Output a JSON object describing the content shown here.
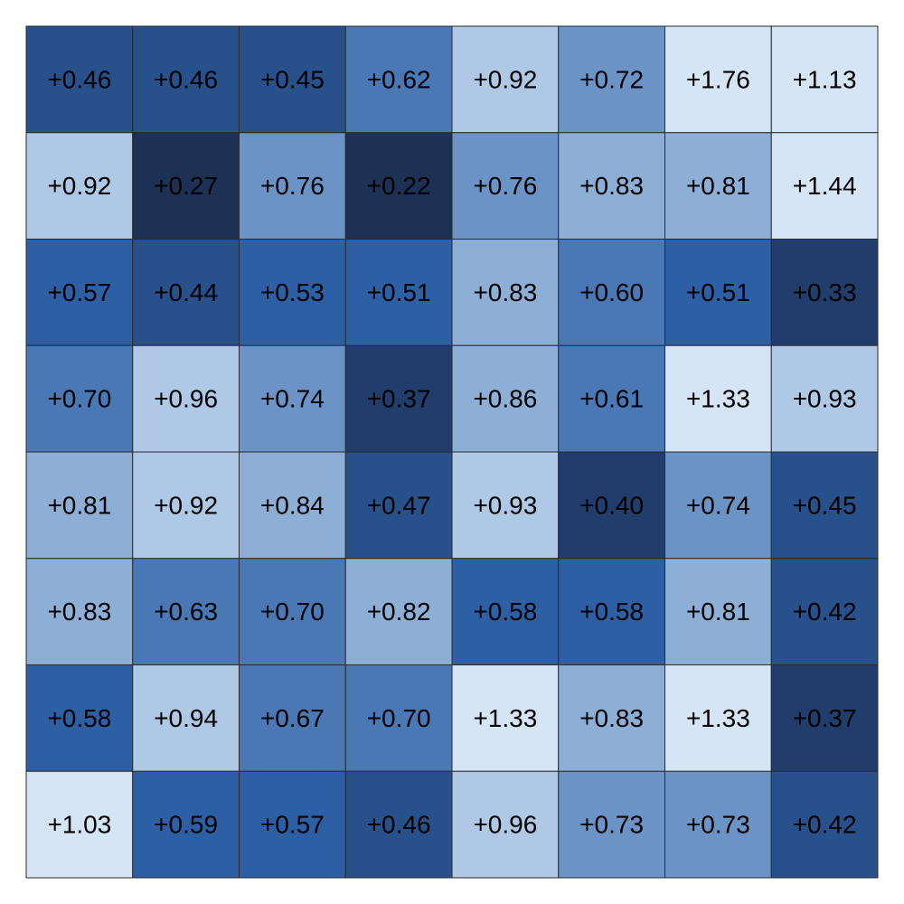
{
  "chart_data": {
    "type": "heatmap",
    "values": [
      [
        0.46,
        0.46,
        0.45,
        0.62,
        0.92,
        0.72,
        1.76,
        1.13
      ],
      [
        0.92,
        0.27,
        0.76,
        0.22,
        0.76,
        0.83,
        0.81,
        1.44
      ],
      [
        0.57,
        0.44,
        0.53,
        0.51,
        0.83,
        0.6,
        0.51,
        0.33
      ],
      [
        0.7,
        0.96,
        0.74,
        0.37,
        0.86,
        0.61,
        1.33,
        0.93
      ],
      [
        0.81,
        0.92,
        0.84,
        0.47,
        0.93,
        0.4,
        0.74,
        0.45
      ],
      [
        0.83,
        0.63,
        0.7,
        0.82,
        0.58,
        0.58,
        0.81,
        0.42
      ],
      [
        0.58,
        0.94,
        0.67,
        0.7,
        1.33,
        0.83,
        1.33,
        0.37
      ],
      [
        1.03,
        0.59,
        0.57,
        0.46,
        0.96,
        0.73,
        0.73,
        0.42
      ]
    ],
    "value_labels": [
      [
        "+0.46",
        "+0.46",
        "+0.45",
        "+0.62",
        "+0.92",
        "+0.72",
        "+1.76",
        "+1.13"
      ],
      [
        "+0.92",
        "+0.27",
        "+0.76",
        "+0.22",
        "+0.76",
        "+0.83",
        "+0.81",
        "+1.44"
      ],
      [
        "+0.57",
        "+0.44",
        "+0.53",
        "+0.51",
        "+0.83",
        "+0.60",
        "+0.51",
        "+0.33"
      ],
      [
        "+0.70",
        "+0.96",
        "+0.74",
        "+0.37",
        "+0.86",
        "+0.61",
        "+1.33",
        "+0.93"
      ],
      [
        "+0.81",
        "+0.92",
        "+0.84",
        "+0.47",
        "+0.93",
        "+0.40",
        "+0.74",
        "+0.45"
      ],
      [
        "+0.83",
        "+0.63",
        "+0.70",
        "+0.82",
        "+0.58",
        "+0.58",
        "+0.81",
        "+0.42"
      ],
      [
        "+0.58",
        "+0.94",
        "+0.67",
        "+0.70",
        "+1.33",
        "+0.83",
        "+1.33",
        "+0.37"
      ],
      [
        "+1.03",
        "+0.59",
        "+0.57",
        "+0.46",
        "+0.96",
        "+0.73",
        "+0.73",
        "+0.42"
      ]
    ],
    "colors": [
      [
        "#28508a",
        "#28508a",
        "#28508a",
        "#4a78b5",
        "#aec8e5",
        "#6b93c6",
        "#d6e5f6",
        "#d6e5f6"
      ],
      [
        "#aec8e5",
        "#1c3153",
        "#6b93c6",
        "#1c3153",
        "#6b93c6",
        "#8dafd6",
        "#8dafd6",
        "#d6e5f6"
      ],
      [
        "#2d5fa5",
        "#28508a",
        "#2d5fa5",
        "#2d5fa5",
        "#8dafd6",
        "#4a78b5",
        "#2d5fa5",
        "#213d6b"
      ],
      [
        "#4a78b5",
        "#aec8e5",
        "#6b93c6",
        "#213d6b",
        "#8dafd6",
        "#4a78b5",
        "#d6e5f6",
        "#aec8e5"
      ],
      [
        "#8dafd6",
        "#aec8e5",
        "#8dafd6",
        "#28508a",
        "#aec8e5",
        "#213d6b",
        "#6b93c6",
        "#28508a"
      ],
      [
        "#8dafd6",
        "#4a78b5",
        "#4a78b5",
        "#8dafd6",
        "#2d5fa5",
        "#2d5fa5",
        "#8dafd6",
        "#28508a"
      ],
      [
        "#2d5fa5",
        "#aec8e5",
        "#4a78b5",
        "#4a78b5",
        "#d6e5f6",
        "#8dafd6",
        "#d6e5f6",
        "#213d6b"
      ],
      [
        "#d6e5f6",
        "#2d5fa5",
        "#2d5fa5",
        "#28508a",
        "#aec8e5",
        "#6b93c6",
        "#6b93c6",
        "#28508a"
      ]
    ]
  }
}
